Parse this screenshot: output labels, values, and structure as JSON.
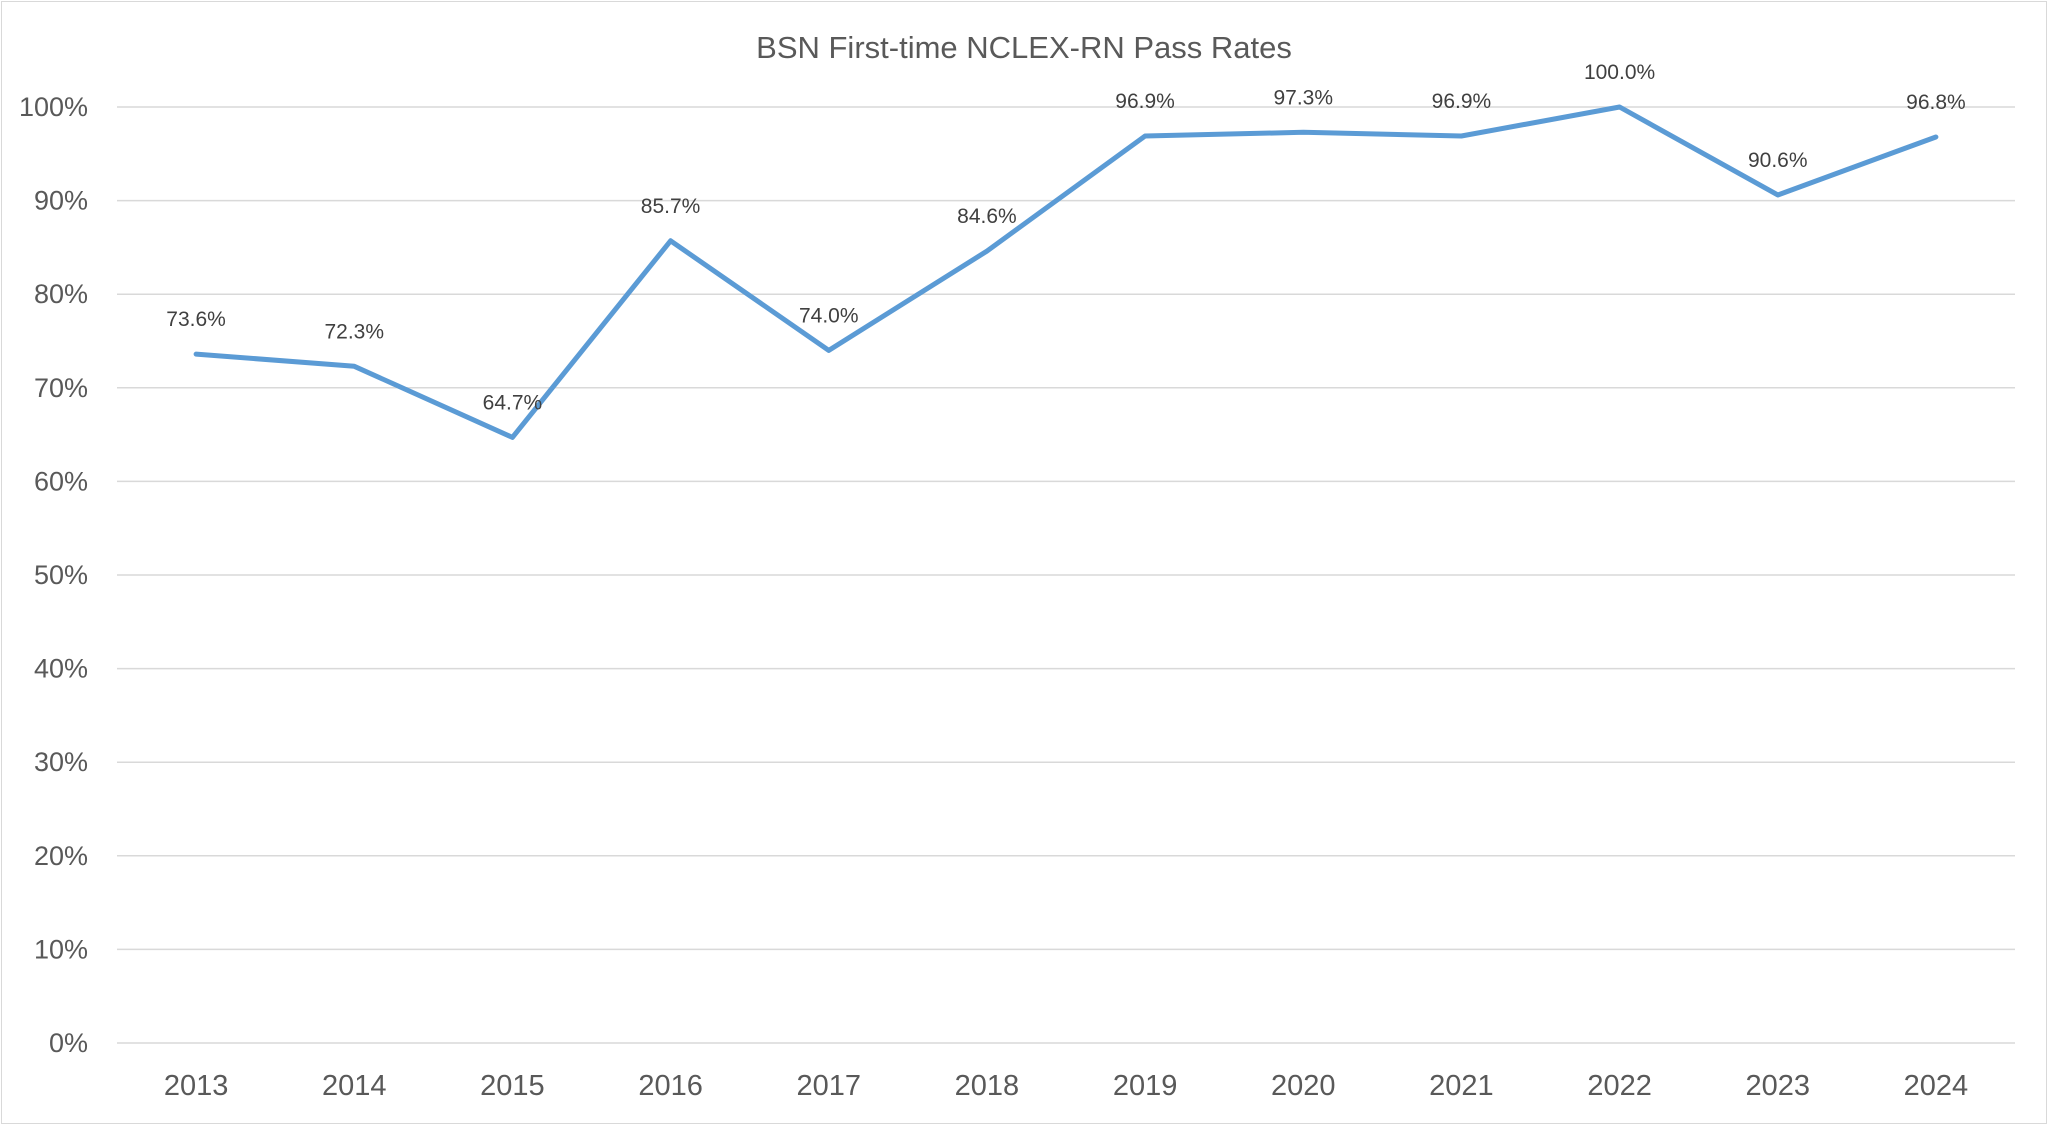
{
  "chart_data": {
    "type": "line",
    "title": "BSN First-time NCLEX-RN Pass Rates",
    "xlabel": "",
    "ylabel": "",
    "categories": [
      "2013",
      "2014",
      "2015",
      "2016",
      "2017",
      "2018",
      "2019",
      "2020",
      "2021",
      "2022",
      "2023",
      "2024"
    ],
    "series": [
      {
        "values": [
          73.6,
          72.3,
          64.7,
          85.7,
          74.0,
          84.6,
          96.9,
          97.3,
          96.9,
          100.0,
          90.6,
          96.8
        ],
        "data_labels": [
          "73.6%",
          "72.3%",
          "64.7%",
          "85.7%",
          "74.0%",
          "84.6%",
          "96.9%",
          "97.3%",
          "96.9%",
          "100.0%",
          "90.6%",
          "96.8%"
        ],
        "color": "#5b9bd5"
      }
    ],
    "ylim": [
      0,
      100
    ],
    "y_ticks": [
      "0%",
      "10%",
      "20%",
      "30%",
      "40%",
      "50%",
      "60%",
      "70%",
      "80%",
      "90%",
      "100%"
    ],
    "grid": "horizontal",
    "legend": "none"
  }
}
